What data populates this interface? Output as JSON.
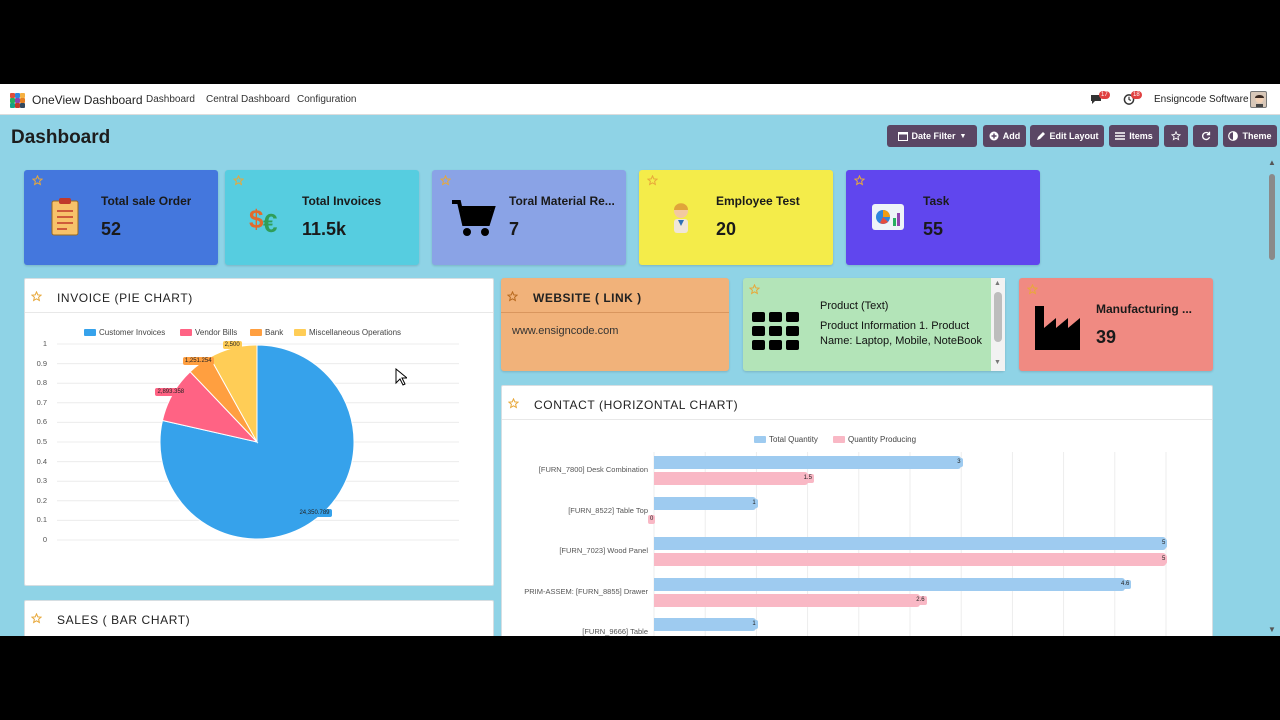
{
  "topbar": {
    "app_title": "OneView Dashboard",
    "nav": [
      "Dashboard",
      "Central Dashboard",
      "Configuration"
    ],
    "chat_count": "17",
    "activity_count": "18",
    "company": "Ensigncode Software"
  },
  "header": {
    "title": "Dashboard",
    "buttons": {
      "date_filter": "Date Filter",
      "add": "Add",
      "edit_layout": "Edit Layout",
      "items": "Items",
      "theme": "Theme"
    }
  },
  "kpis": [
    {
      "title": "Total sale Order",
      "value": "52",
      "color": "#4477dd",
      "icon": "clipboard-icon"
    },
    {
      "title": "Total Invoices",
      "value": "11.5k",
      "color": "#56cde0",
      "icon": "currency-icon"
    },
    {
      "title": "Toral Material Re...",
      "value": "7",
      "color": "#8aa3e6",
      "icon": "cart-icon"
    },
    {
      "title": "Employee Test",
      "value": "20",
      "color": "#f4ec4a",
      "icon": "person-icon"
    },
    {
      "title": "Task",
      "value": "55",
      "color": "#6046ee",
      "icon": "report-icon"
    }
  ],
  "invoice_panel": {
    "title": "INVOICE (PIE CHART)"
  },
  "website_card": {
    "title": "WEBSITE ( LINK )",
    "url": "www.ensigncode.com",
    "color": "#f1b27a"
  },
  "product_card": {
    "title": "Product (Text)",
    "body": "Product Information 1. Product Name: Laptop, Mobile, NoteBook",
    "color": "#b3e4b8"
  },
  "manufacturing_card": {
    "title": "Manufacturing ...",
    "value": "39",
    "color": "#f08a82"
  },
  "contact_panel": {
    "title": "CONTACT (HORIZONTAL CHART)"
  },
  "sales_panel": {
    "title": "SALES ( BAR CHART)"
  },
  "chart_data": [
    {
      "type": "pie",
      "legend": [
        "Customer Invoices",
        "Vendor Bills",
        "Bank",
        "Miscellaneous Operations"
      ],
      "values": [
        24350.789,
        2893.358,
        1251.254,
        2500
      ],
      "value_labels": [
        "24,350.789",
        "2,893.358",
        "1,251.254",
        "2,500"
      ],
      "colors": [
        "#36a2eb",
        "#ff6384",
        "#ff9f40",
        "#ffcd56"
      ],
      "y_ticks": [
        "1",
        "0.9",
        "0.8",
        "0.7",
        "0.6",
        "0.5",
        "0.4",
        "0.3",
        "0.2",
        "0.1",
        "0"
      ],
      "legend_position": "top"
    },
    {
      "type": "bar",
      "orientation": "horizontal",
      "categories": [
        "[FURN_7800] Desk Combination",
        "[FURN_8522] Table Top",
        "[FURN_7023] Wood Panel",
        "PRIM-ASSEM: [FURN_8855] Drawer",
        "[FURN_9666] Table"
      ],
      "series": [
        {
          "name": "Total Quantity",
          "values": [
            3,
            1,
            5,
            4.6,
            1
          ],
          "labels": [
            "3",
            "1",
            "5",
            "4.6",
            "1"
          ],
          "color": "#9ecbf0"
        },
        {
          "name": "Quantity Producing",
          "values": [
            1.5,
            0,
            5,
            2.6,
            null
          ],
          "labels": [
            "1.5",
            "0",
            "5",
            "2.6",
            ""
          ],
          "color": "#f9b8c5"
        }
      ],
      "xlim": [
        0,
        5
      ],
      "legend_position": "top"
    }
  ]
}
